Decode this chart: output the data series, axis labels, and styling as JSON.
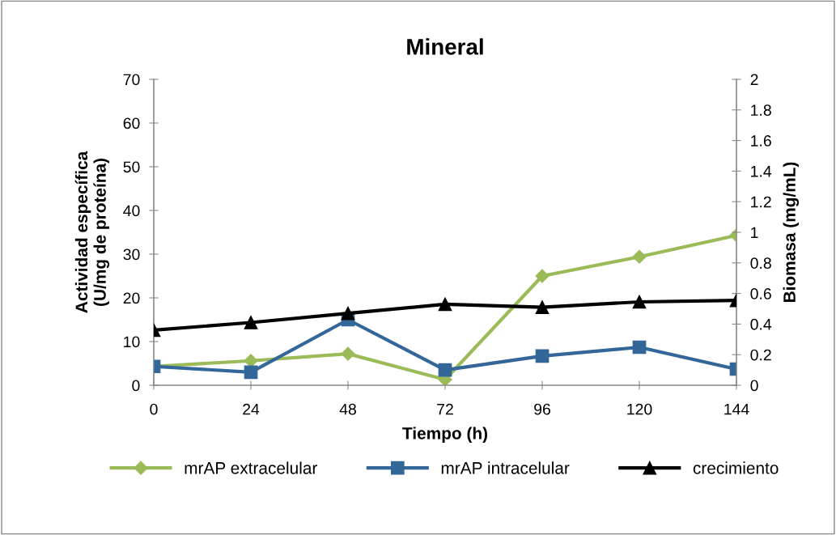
{
  "chart_data": {
    "type": "line",
    "title": "Mineral",
    "xlabel": "Tiempo (h)",
    "ylabel": "Actividad específica\n(U/mg de proteína)",
    "y2label": "Biomasa (mg/mL)",
    "x": [
      0,
      24,
      48,
      72,
      96,
      120,
      144
    ],
    "xlim": [
      0,
      144
    ],
    "xticks": [
      0,
      24,
      48,
      72,
      96,
      120,
      144
    ],
    "ylim": [
      0,
      70
    ],
    "yticks": [
      0,
      10,
      20,
      30,
      40,
      50,
      60,
      70
    ],
    "y2lim": [
      0,
      2
    ],
    "y2ticks": [
      0,
      0.2,
      0.4,
      0.6,
      0.8,
      1,
      1.2,
      1.4,
      1.6,
      1.8,
      2
    ],
    "grid": false,
    "legend": "bottom",
    "line_style": "solid",
    "series": [
      {
        "name": "mrAP extracelular",
        "color": "#9bbb59",
        "marker": "diamond",
        "values": [
          4.3,
          5.6,
          7.2,
          1.3,
          25,
          29.4,
          34.3
        ]
      },
      {
        "name": "mrAP intracelular",
        "color": "#336699",
        "marker": "square",
        "values": [
          4.3,
          3.0,
          15,
          3.5,
          6.7,
          8.7,
          3.7
        ]
      },
      {
        "name": "crecimiento",
        "color": "#000000",
        "marker": "triangle",
        "axis": "y2",
        "values": [
          0.36,
          0.41,
          0.47,
          0.53,
          0.51,
          0.545,
          0.555
        ]
      }
    ]
  }
}
